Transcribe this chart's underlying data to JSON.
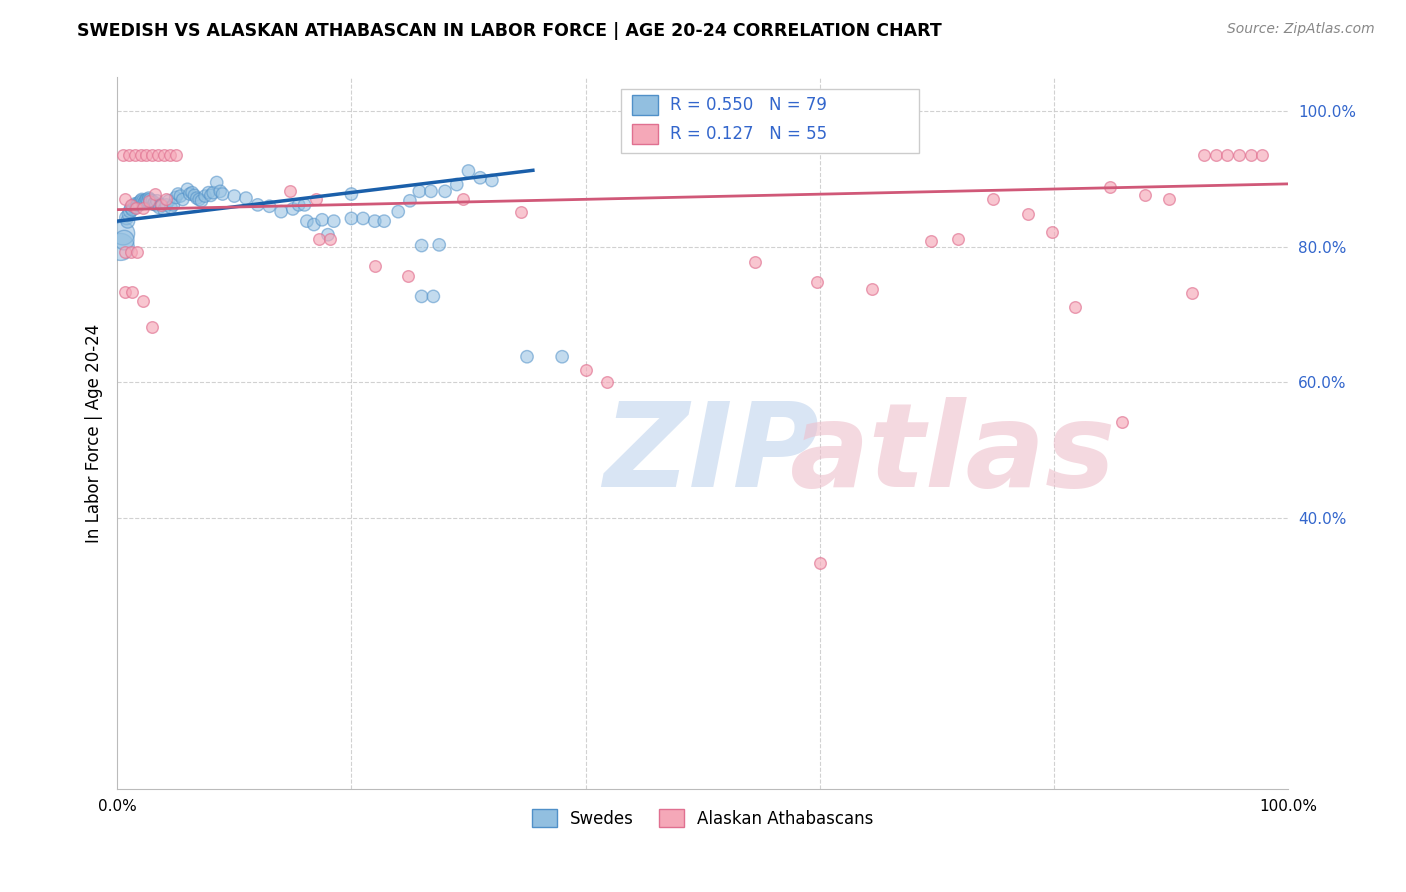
{
  "title": "SWEDISH VS ALASKAN ATHABASCAN IN LABOR FORCE | AGE 20-24 CORRELATION CHART",
  "source": "Source: ZipAtlas.com",
  "ylabel": "In Labor Force | Age 20-24",
  "xlim": [
    0.0,
    1.0
  ],
  "ylim": [
    0.0,
    1.05
  ],
  "ytick_values_right": [
    0.4,
    0.6,
    0.8,
    1.0
  ],
  "ytick_labels_right": [
    "40.0%",
    "60.0%",
    "80.0%",
    "100.0%"
  ],
  "r_swedish": 0.55,
  "n_swedish": 79,
  "r_athabascan": 0.127,
  "n_athabascan": 55,
  "swedish_color": "#92bfe0",
  "swedish_edge": "#5090c8",
  "athabascan_color": "#f5a8b8",
  "athabascan_edge": "#e07090",
  "swedish_line_color": "#1a5faa",
  "athabascan_line_color": "#d05878",
  "grid_color": "#cccccc",
  "background_color": "#ffffff",
  "blue_label_color": "#3366cc",
  "swedish_line": [
    0.0,
    0.838,
    0.355,
    0.913
  ],
  "ath_line": [
    0.0,
    0.855,
    1.0,
    0.893
  ],
  "swedish_dots": [
    [
      0.003,
      0.8
    ],
    [
      0.005,
      0.82
    ],
    [
      0.006,
      0.81
    ],
    [
      0.008,
      0.843
    ],
    [
      0.009,
      0.838
    ],
    [
      0.01,
      0.848
    ],
    [
      0.011,
      0.853
    ],
    [
      0.012,
      0.858
    ],
    [
      0.013,
      0.855
    ],
    [
      0.014,
      0.86
    ],
    [
      0.015,
      0.863
    ],
    [
      0.016,
      0.858
    ],
    [
      0.017,
      0.862
    ],
    [
      0.018,
      0.865
    ],
    [
      0.019,
      0.862
    ],
    [
      0.02,
      0.868
    ],
    [
      0.021,
      0.87
    ],
    [
      0.022,
      0.868
    ],
    [
      0.023,
      0.865
    ],
    [
      0.024,
      0.868
    ],
    [
      0.025,
      0.87
    ],
    [
      0.026,
      0.868
    ],
    [
      0.027,
      0.872
    ],
    [
      0.028,
      0.87
    ],
    [
      0.03,
      0.868
    ],
    [
      0.031,
      0.863
    ],
    [
      0.032,
      0.865
    ],
    [
      0.033,
      0.862
    ],
    [
      0.034,
      0.868
    ],
    [
      0.036,
      0.858
    ],
    [
      0.038,
      0.862
    ],
    [
      0.04,
      0.855
    ],
    [
      0.042,
      0.862
    ],
    [
      0.044,
      0.868
    ],
    [
      0.046,
      0.858
    ],
    [
      0.048,
      0.862
    ],
    [
      0.05,
      0.873
    ],
    [
      0.052,
      0.878
    ],
    [
      0.054,
      0.875
    ],
    [
      0.056,
      0.87
    ],
    [
      0.06,
      0.885
    ],
    [
      0.062,
      0.878
    ],
    [
      0.064,
      0.88
    ],
    [
      0.066,
      0.876
    ],
    [
      0.068,
      0.872
    ],
    [
      0.07,
      0.87
    ],
    [
      0.072,
      0.868
    ],
    [
      0.075,
      0.875
    ],
    [
      0.078,
      0.88
    ],
    [
      0.08,
      0.876
    ],
    [
      0.082,
      0.88
    ],
    [
      0.085,
      0.895
    ],
    [
      0.088,
      0.882
    ],
    [
      0.09,
      0.878
    ],
    [
      0.1,
      0.875
    ],
    [
      0.11,
      0.872
    ],
    [
      0.12,
      0.862
    ],
    [
      0.13,
      0.86
    ],
    [
      0.14,
      0.852
    ],
    [
      0.15,
      0.856
    ],
    [
      0.155,
      0.862
    ],
    [
      0.16,
      0.862
    ],
    [
      0.162,
      0.838
    ],
    [
      0.168,
      0.833
    ],
    [
      0.175,
      0.84
    ],
    [
      0.18,
      0.818
    ],
    [
      0.185,
      0.838
    ],
    [
      0.2,
      0.842
    ],
    [
      0.2,
      0.878
    ],
    [
      0.21,
      0.842
    ],
    [
      0.22,
      0.838
    ],
    [
      0.228,
      0.838
    ],
    [
      0.24,
      0.852
    ],
    [
      0.25,
      0.868
    ],
    [
      0.258,
      0.882
    ],
    [
      0.268,
      0.882
    ],
    [
      0.28,
      0.882
    ],
    [
      0.29,
      0.892
    ],
    [
      0.3,
      0.912
    ],
    [
      0.31,
      0.902
    ],
    [
      0.32,
      0.898
    ],
    [
      0.26,
      0.802
    ],
    [
      0.275,
      0.803
    ],
    [
      0.35,
      0.638
    ],
    [
      0.38,
      0.638
    ],
    [
      0.26,
      0.727
    ],
    [
      0.27,
      0.727
    ]
  ],
  "swedish_dot_sizes": [
    380,
    280,
    200,
    100,
    100,
    95,
    95,
    90,
    85,
    85,
    85,
    80,
    80,
    80,
    80,
    80,
    80,
    80,
    80,
    80,
    80,
    80,
    80,
    80,
    80,
    80,
    80,
    80,
    80,
    80,
    80,
    80,
    80,
    80,
    80,
    80,
    80,
    80,
    80,
    80,
    80,
    80,
    80,
    80,
    80,
    80,
    80,
    80,
    80,
    80,
    80,
    80,
    80,
    80,
    80,
    80,
    80,
    80,
    80,
    80,
    80,
    80,
    80,
    80,
    80,
    80,
    80,
    80,
    80,
    80,
    80,
    80,
    80,
    80,
    80,
    80,
    80,
    80,
    80,
    80,
    80,
    80,
    80,
    80,
    80
  ],
  "athabascan_dots": [
    [
      0.005,
      0.935
    ],
    [
      0.01,
      0.935
    ],
    [
      0.015,
      0.935
    ],
    [
      0.02,
      0.935
    ],
    [
      0.025,
      0.935
    ],
    [
      0.03,
      0.935
    ],
    [
      0.035,
      0.935
    ],
    [
      0.04,
      0.935
    ],
    [
      0.045,
      0.935
    ],
    [
      0.05,
      0.935
    ],
    [
      0.007,
      0.87
    ],
    [
      0.012,
      0.862
    ],
    [
      0.016,
      0.858
    ],
    [
      0.022,
      0.858
    ],
    [
      0.027,
      0.868
    ],
    [
      0.032,
      0.878
    ],
    [
      0.037,
      0.862
    ],
    [
      0.042,
      0.87
    ],
    [
      0.007,
      0.792
    ],
    [
      0.012,
      0.793
    ],
    [
      0.017,
      0.793
    ],
    [
      0.007,
      0.733
    ],
    [
      0.013,
      0.733
    ],
    [
      0.022,
      0.72
    ],
    [
      0.03,
      0.682
    ],
    [
      0.148,
      0.882
    ],
    [
      0.17,
      0.87
    ],
    [
      0.172,
      0.812
    ],
    [
      0.182,
      0.812
    ],
    [
      0.22,
      0.772
    ],
    [
      0.248,
      0.757
    ],
    [
      0.295,
      0.87
    ],
    [
      0.345,
      0.852
    ],
    [
      0.4,
      0.618
    ],
    [
      0.418,
      0.6
    ],
    [
      0.545,
      0.778
    ],
    [
      0.598,
      0.748
    ],
    [
      0.645,
      0.738
    ],
    [
      0.695,
      0.808
    ],
    [
      0.718,
      0.812
    ],
    [
      0.748,
      0.87
    ],
    [
      0.778,
      0.848
    ],
    [
      0.798,
      0.822
    ],
    [
      0.818,
      0.712
    ],
    [
      0.848,
      0.888
    ],
    [
      0.858,
      0.542
    ],
    [
      0.878,
      0.877
    ],
    [
      0.898,
      0.87
    ],
    [
      0.918,
      0.732
    ],
    [
      0.928,
      0.935
    ],
    [
      0.938,
      0.935
    ],
    [
      0.948,
      0.935
    ],
    [
      0.958,
      0.935
    ],
    [
      0.968,
      0.935
    ],
    [
      0.978,
      0.935
    ],
    [
      0.6,
      0.333
    ]
  ],
  "watermark_zip_color": "#c0d4ee",
  "watermark_atlas_color": "#eec0cc"
}
